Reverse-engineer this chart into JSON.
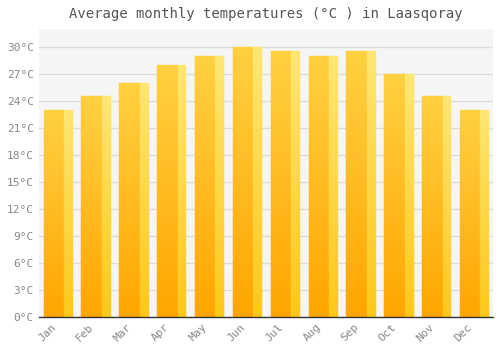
{
  "title": "Average monthly temperatures (°C ) in Laasqoray",
  "months": [
    "Jan",
    "Feb",
    "Mar",
    "Apr",
    "May",
    "Jun",
    "Jul",
    "Aug",
    "Sep",
    "Oct",
    "Nov",
    "Dec"
  ],
  "values": [
    23,
    24.5,
    26,
    28,
    29,
    30,
    29.5,
    29,
    29.5,
    27,
    24.5,
    23
  ],
  "ylim": [
    0,
    32
  ],
  "yticks": [
    0,
    3,
    6,
    9,
    12,
    15,
    18,
    21,
    24,
    27,
    30
  ],
  "ytick_labels": [
    "0°C",
    "3°C",
    "6°C",
    "9°C",
    "12°C",
    "15°C",
    "18°C",
    "21°C",
    "24°C",
    "27°C",
    "30°C"
  ],
  "background_color": "#ffffff",
  "plot_bg_color": "#f5f5f5",
  "grid_color": "#dddddd",
  "title_fontsize": 10,
  "tick_fontsize": 8,
  "bar_color_main": "#FFA500",
  "bar_color_light": "#FFD040",
  "bar_color_edge": "#E8960A",
  "tick_color": "#888888",
  "title_color": "#555555",
  "bar_width": 0.75
}
